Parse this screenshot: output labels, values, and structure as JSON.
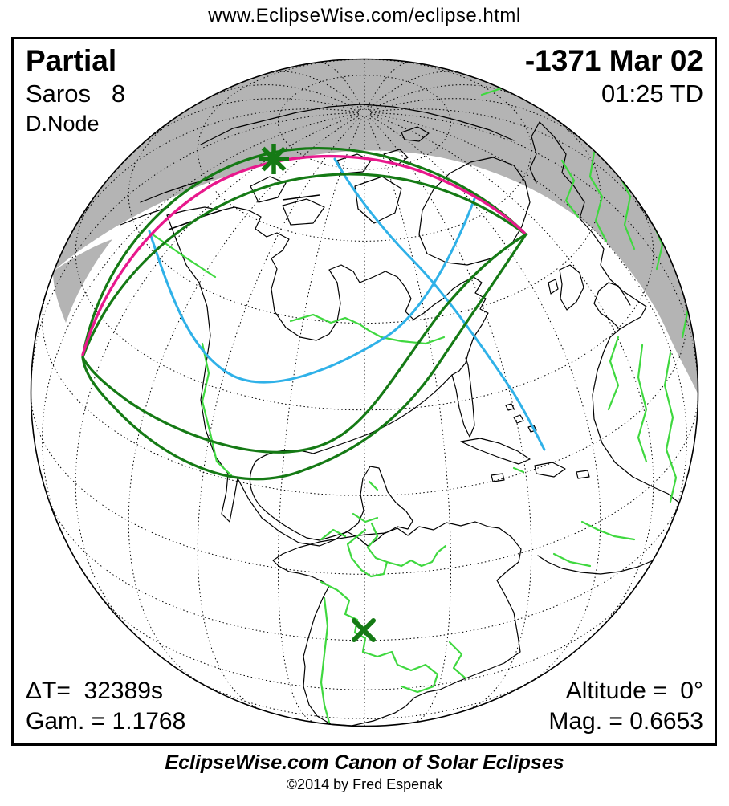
{
  "header": {
    "url": "www.EclipseWise.com/eclipse.html"
  },
  "panel": {
    "eclipse_type": "Partial",
    "saros": "Saros   8",
    "node": "D.Node",
    "date": "-1371 Mar 02",
    "time": "01:25 TD",
    "delta_t": "ΔT=  32389s",
    "gamma": "Gam. = 1.1768",
    "altitude": "Altitude =  0°",
    "magnitude": "Mag. = 0.6653"
  },
  "footer": {
    "title": "EclipseWise.com Canon of Solar Eclipses",
    "copyright": "©2014 by Fred Espenak"
  },
  "map": {
    "projection_note": "orthographic globe, Americas centered, polar night shading",
    "markers": [
      {
        "name": "greatest-eclipse",
        "symbol": "asterisk"
      },
      {
        "name": "sub-solar-point",
        "symbol": "x"
      }
    ],
    "colors": {
      "night_gray": "#b4b4b4",
      "coastline_black": "#000000",
      "country_border_green": "#3fd83f",
      "eclipse_limit_green": "#157a15",
      "limit_magenta": "#e8188c",
      "rise_set_cyan": "#2fb1e8"
    }
  }
}
